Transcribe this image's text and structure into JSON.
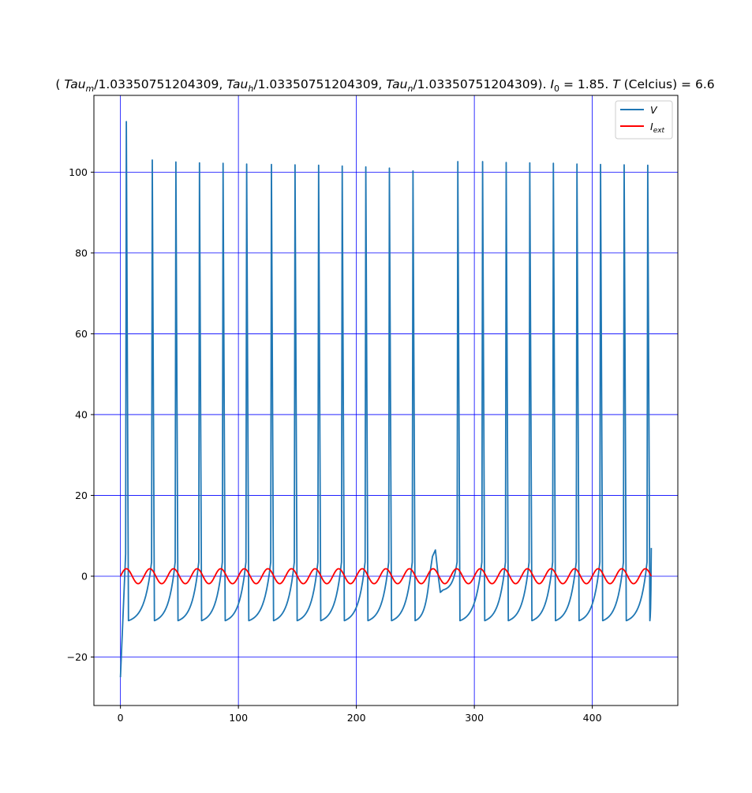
{
  "chart_data": {
    "type": "line",
    "title": {
      "open": "( ",
      "tau_m_base": "Tau",
      "tau_m_sub": "m",
      "tau_m_div": "/1.03350751204309, ",
      "tau_h_base": "Tau",
      "tau_h_sub": "h",
      "tau_h_div": "/1.03350751204309, ",
      "tau_n_base": "Tau",
      "tau_n_sub": "n",
      "tau_n_div": "/1.03350751204309). ",
      "i0_base": "I",
      "i0_sub": "0",
      "i0_rest": " = 1.85. ",
      "t_italic": "T",
      "t_rest": " (Celcius) = 6.6"
    },
    "xlabel": "",
    "ylabel": "",
    "xlim": [
      -22.5,
      472.5
    ],
    "ylim": [
      -32,
      119
    ],
    "x_ticks": [
      0,
      100,
      200,
      300,
      400
    ],
    "y_ticks": [
      -20,
      0,
      20,
      40,
      60,
      80,
      100
    ],
    "grid": true,
    "grid_color": "#0000ff",
    "legend_position": "top-right",
    "legend": [
      {
        "base": "V",
        "sub": "",
        "color": "#1f77b4"
      },
      {
        "base": "I",
        "sub": "ext",
        "color": "#ff0000"
      }
    ],
    "series": [
      {
        "name": "V",
        "color": "#1f77b4",
        "initial": -25,
        "first_spike": {
          "t": 5,
          "peak": 112.5
        },
        "spike_times": [
          5,
          27,
          47,
          67,
          87,
          107,
          128,
          148,
          168,
          188,
          208,
          228,
          248,
          286,
          307,
          327,
          347,
          367,
          387,
          407,
          427,
          447
        ],
        "spike_peaks": [
          112.5,
          103,
          102.5,
          102.3,
          102.2,
          102,
          101.9,
          101.8,
          101.7,
          101.5,
          101.3,
          101,
          100.3,
          102.6,
          102.6,
          102.4,
          102.3,
          102.2,
          102,
          101.9,
          101.8,
          101.7
        ],
        "after_hyperpolarization": -11,
        "pre_spike_level": 3.5,
        "subthreshold_event": {
          "t": 267,
          "peak": 6.5,
          "trough": -4
        },
        "t_end": 450,
        "final_value": 7
      },
      {
        "name": "I_ext",
        "color": "#ff0000",
        "amplitude": 1.85,
        "period": 20,
        "t_start": 0,
        "t_end": 450
      }
    ]
  }
}
